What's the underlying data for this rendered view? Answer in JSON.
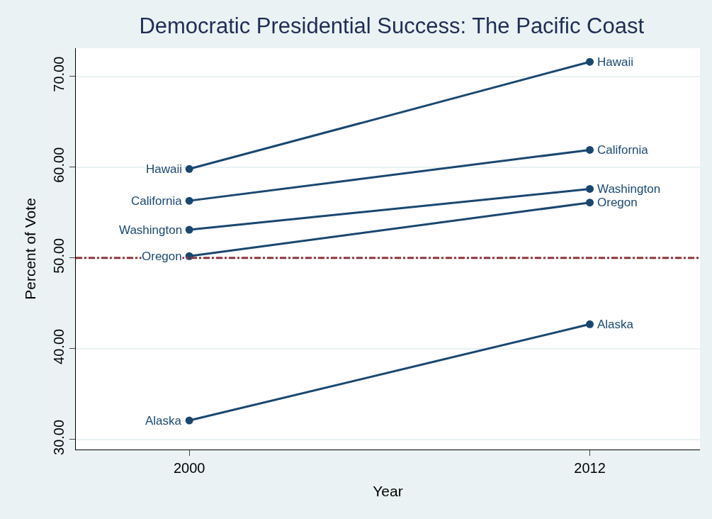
{
  "chart_data": {
    "type": "line",
    "title": "Democratic Presidential Success: The Pacific Coast",
    "xlabel": "Year",
    "ylabel": "Percent of Vote",
    "x": [
      2000,
      2012
    ],
    "series": [
      {
        "name": "Hawaii",
        "color": "#1a476f",
        "values": [
          59.8,
          71.6
        ]
      },
      {
        "name": "California",
        "color": "#1a476f",
        "values": [
          56.3,
          61.9
        ]
      },
      {
        "name": "Washington",
        "color": "#1a476f",
        "values": [
          53.1,
          57.6
        ]
      },
      {
        "name": "Oregon",
        "color": "#1a476f",
        "values": [
          50.2,
          56.1
        ]
      },
      {
        "name": "Alaska",
        "color": "#1a476f",
        "values": [
          32.1,
          42.7
        ]
      }
    ],
    "xlim": [
      1996.6,
      2015.3
    ],
    "xticks": [
      2000,
      2012
    ],
    "ylim": [
      28.9,
      73.1
    ],
    "yticks": [
      {
        "value": 30,
        "label": "30.00"
      },
      {
        "value": 40,
        "label": "40.00"
      },
      {
        "value": 50,
        "label": "50.00"
      },
      {
        "value": 60,
        "label": "60.00"
      },
      {
        "value": 70,
        "label": "70.00"
      }
    ],
    "ref_lines": [
      {
        "axis": "y",
        "value": 50,
        "color": "#90353b",
        "line_style": "dashdot"
      }
    ],
    "grid": "y",
    "legend": false,
    "marker": "circle",
    "line_style": "solid"
  }
}
